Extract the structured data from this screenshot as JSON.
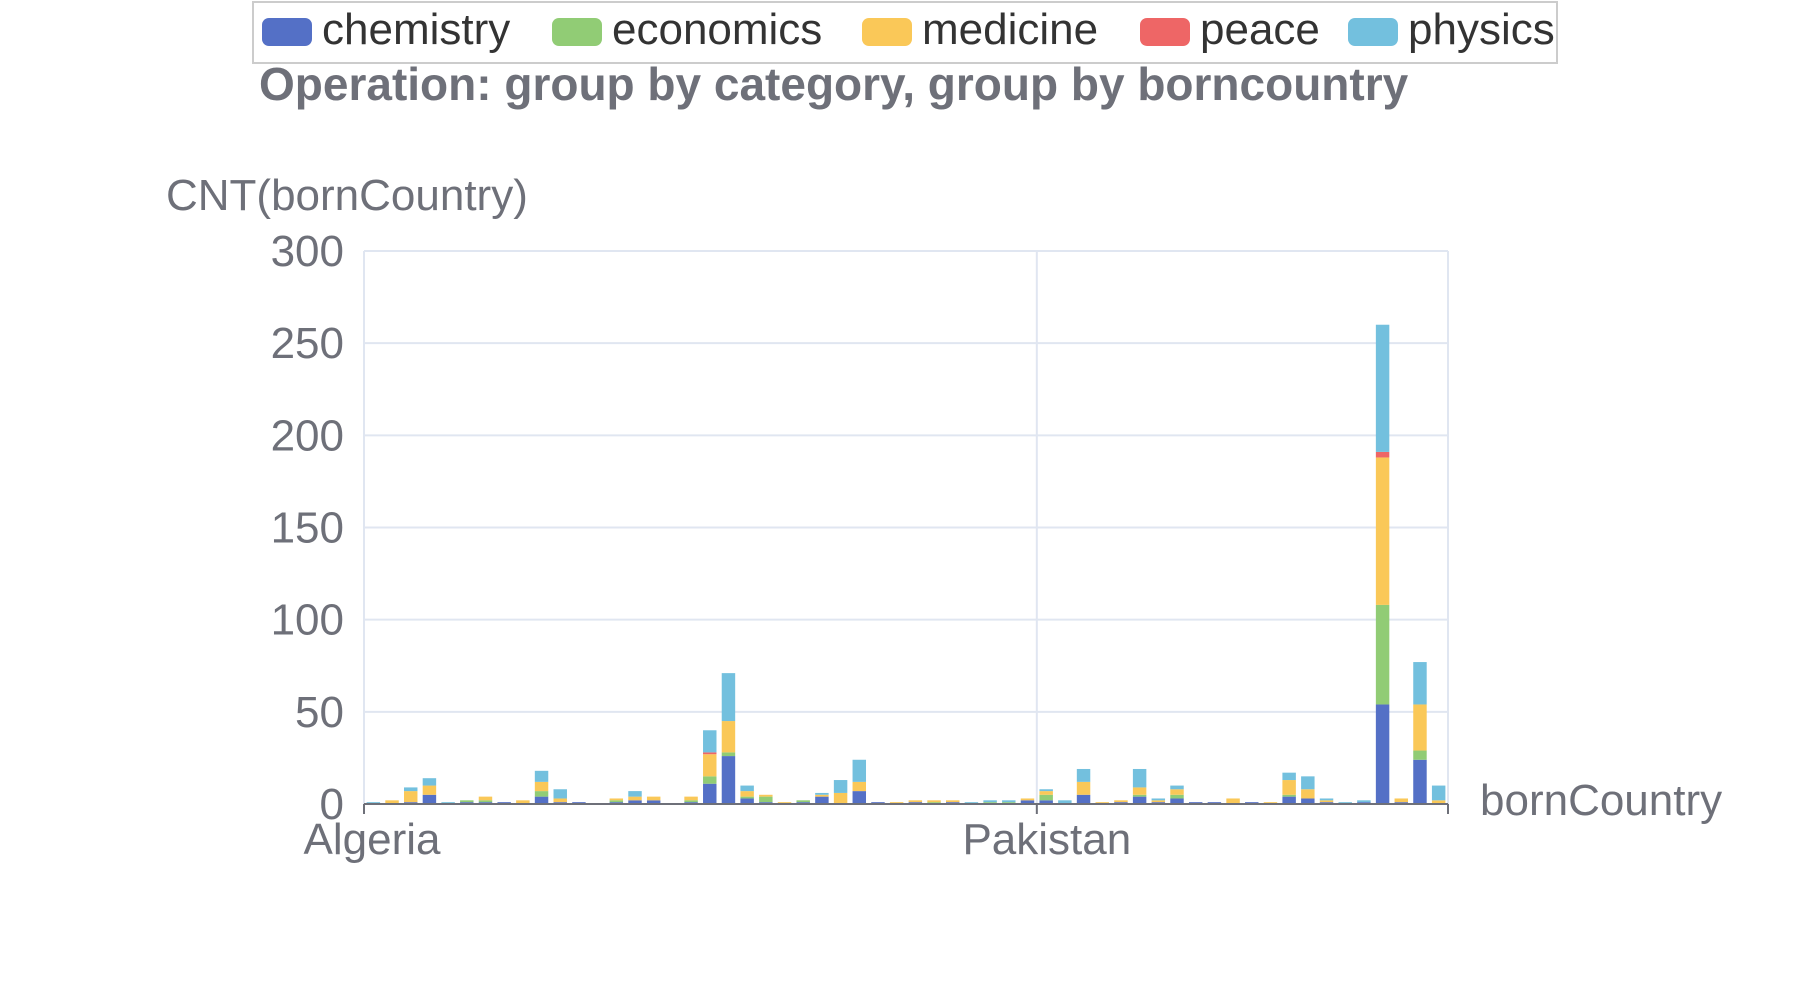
{
  "chart_data": {
    "type": "bar",
    "stacked": true,
    "title": "Operation: group by category, group by borncountry",
    "xlabel": "bornCountry",
    "ylabel": "CNT(bornCountry)",
    "ylim": [
      0,
      300
    ],
    "yticks": [
      0,
      50,
      100,
      150,
      200,
      250,
      300
    ],
    "x_tick_labels": [
      "Algeria",
      "Pakistan"
    ],
    "x_tick_label_indices": [
      0,
      36
    ],
    "legend_position": "top-center",
    "grid": true,
    "categories": [
      "Algeria",
      "",
      "",
      "",
      "",
      "",
      "",
      "",
      "",
      "",
      "",
      "",
      "",
      "",
      "",
      "",
      "",
      "",
      "",
      "",
      "",
      "",
      "",
      "",
      "",
      "",
      "",
      "",
      "",
      "",
      "",
      "",
      "",
      "",
      "",
      "",
      "Pakistan",
      "",
      "",
      "",
      "",
      "",
      "",
      "",
      "",
      "",
      "",
      "",
      "",
      "",
      "",
      "",
      "",
      "",
      "",
      "",
      "",
      ""
    ],
    "series": [
      {
        "name": "chemistry",
        "color": "#5470c6",
        "values": [
          0,
          0,
          1,
          5,
          0,
          1,
          1,
          1,
          0,
          4,
          1,
          1,
          0,
          1,
          2,
          2,
          0,
          1,
          11,
          26,
          3,
          1,
          0,
          1,
          4,
          0,
          7,
          1,
          0,
          1,
          0,
          1,
          0,
          0,
          0,
          2,
          2,
          0,
          5,
          0,
          1,
          4,
          1,
          3,
          1,
          1,
          0,
          1,
          0,
          4,
          3,
          1,
          0,
          1,
          54,
          1,
          24,
          0
        ]
      },
      {
        "name": "economics",
        "color": "#91cc75",
        "values": [
          0,
          0,
          0,
          0,
          0,
          1,
          1,
          0,
          0,
          3,
          0,
          0,
          0,
          1,
          0,
          0,
          0,
          1,
          4,
          2,
          1,
          3,
          0,
          1,
          0,
          0,
          0,
          0,
          0,
          0,
          1,
          0,
          0,
          1,
          1,
          0,
          3,
          0,
          0,
          0,
          0,
          1,
          0,
          2,
          0,
          0,
          0,
          0,
          0,
          1,
          0,
          0,
          0,
          0,
          54,
          0,
          5,
          0
        ]
      },
      {
        "name": "medicine",
        "color": "#fac858",
        "values": [
          0,
          2,
          6,
          5,
          0,
          0,
          2,
          0,
          2,
          5,
          2,
          0,
          0,
          1,
          2,
          2,
          0,
          2,
          12,
          17,
          3,
          1,
          1,
          0,
          1,
          6,
          5,
          0,
          1,
          1,
          1,
          1,
          0,
          0,
          0,
          1,
          2,
          0,
          7,
          1,
          1,
          4,
          1,
          3,
          0,
          0,
          3,
          0,
          1,
          8,
          5,
          1,
          0,
          0,
          80,
          2,
          25,
          2
        ]
      },
      {
        "name": "peace",
        "color": "#ee6666",
        "values": [
          0,
          0,
          0,
          0,
          0,
          0,
          0,
          0,
          0,
          0,
          0,
          0,
          0,
          0,
          0,
          0,
          0,
          0,
          1,
          0,
          0,
          0,
          0,
          0,
          0,
          0,
          0,
          0,
          0,
          0,
          0,
          0,
          0,
          0,
          0,
          0,
          0,
          0,
          0,
          0,
          0,
          0,
          0,
          0,
          0,
          0,
          0,
          0,
          0,
          0,
          0,
          0,
          0,
          0,
          3,
          0,
          0,
          0
        ]
      },
      {
        "name": "physics",
        "color": "#73c0de",
        "values": [
          1,
          0,
          2,
          4,
          1,
          0,
          0,
          0,
          0,
          6,
          5,
          0,
          0,
          0,
          3,
          0,
          0,
          0,
          12,
          26,
          3,
          0,
          0,
          0,
          1,
          7,
          12,
          0,
          0,
          0,
          0,
          0,
          1,
          1,
          1,
          0,
          1,
          2,
          7,
          0,
          0,
          10,
          1,
          2,
          0,
          0,
          0,
          0,
          0,
          4,
          7,
          1,
          1,
          1,
          69,
          0,
          23,
          8
        ]
      }
    ]
  }
}
